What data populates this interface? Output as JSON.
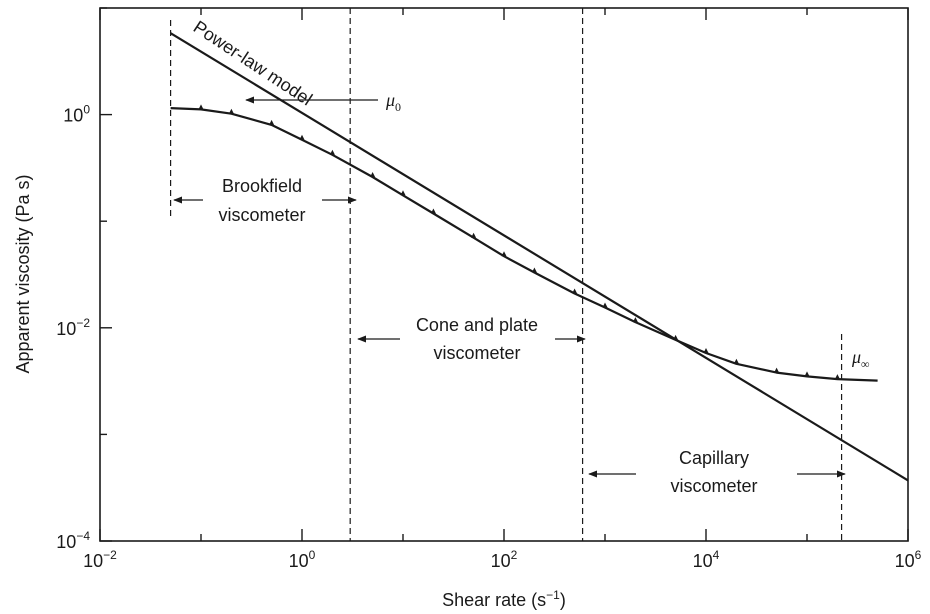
{
  "chart_data": {
    "type": "line",
    "scale": {
      "x": "log",
      "y": "log"
    },
    "xlim": [
      0.01,
      1000000
    ],
    "ylim": [
      0.0001,
      10
    ],
    "xlabel": {
      "base": "Shear rate (s",
      "sup": "−1",
      "end": ")"
    },
    "ylabel": "Apparent viscosity (Pa s)",
    "x_ticks": [
      {
        "base": "10",
        "exp": "−2",
        "value": 0.01
      },
      {
        "base": "10",
        "exp": "0",
        "value": 1
      },
      {
        "base": "10",
        "exp": "2",
        "value": 100
      },
      {
        "base": "10",
        "exp": "4",
        "value": 10000
      },
      {
        "base": "10",
        "exp": "6",
        "value": 1000000
      }
    ],
    "y_ticks": [
      {
        "base": "10",
        "exp": "−4",
        "value": 0.0001
      },
      {
        "base": "10",
        "exp": "−2",
        "value": 0.01
      },
      {
        "base": "10",
        "exp": "0",
        "value": 1
      }
    ],
    "grid": false,
    "series": [
      {
        "name": "Power-law model",
        "style": "line",
        "x": [
          0.05,
          1000000
        ],
        "y": [
          5.8,
          0.00037
        ]
      },
      {
        "style": "line-with-data-points",
        "x": [
          0.05,
          0.1,
          0.2,
          0.5,
          1,
          2,
          5,
          10,
          20,
          50,
          100,
          200,
          500,
          1000,
          2000,
          5000,
          10000,
          20000,
          50000,
          100000,
          200000,
          500000
        ],
        "y": [
          1.15,
          1.12,
          1.02,
          0.8,
          0.58,
          0.42,
          0.26,
          0.175,
          0.118,
          0.07,
          0.047,
          0.033,
          0.021,
          0.0155,
          0.0113,
          0.0077,
          0.0058,
          0.0046,
          0.0038,
          0.0035,
          0.0033,
          0.0032
        ]
      }
    ],
    "boundaries_x": [
      3.0,
      600,
      220000
    ],
    "annotations": {
      "power_law_label": "Power-law model",
      "mu0": {
        "symbol": "μ",
        "sub": "0"
      },
      "mu_inf": {
        "symbol": "μ",
        "sub": "∞"
      },
      "brookfield": [
        "Brookfield",
        "viscometer"
      ],
      "cone_plate": [
        "Cone and plate",
        "viscometer"
      ],
      "capillary": [
        "Capillary",
        "viscometer"
      ]
    }
  }
}
